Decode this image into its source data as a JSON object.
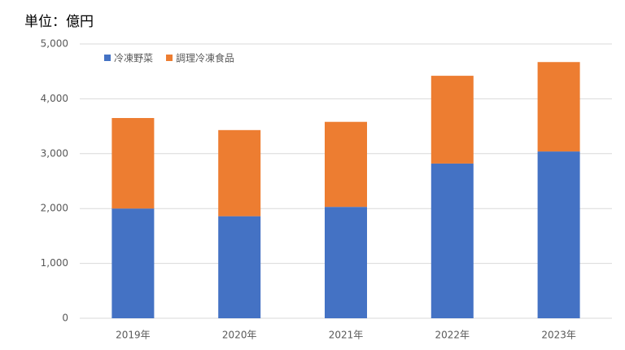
{
  "chart_data": {
    "type": "stacked_bar",
    "title": "単位：億円",
    "categories": [
      "2019年",
      "2020年",
      "2021年",
      "2022年",
      "2023年"
    ],
    "series": [
      {
        "name": "冷凍野菜",
        "color": "#4472c4",
        "values": [
          2000,
          1860,
          2030,
          2820,
          3040
        ]
      },
      {
        "name": "調理冷凍食品",
        "color": "#ed7d31",
        "values": [
          1650,
          1570,
          1550,
          1600,
          1630
        ]
      }
    ],
    "ylim": [
      0,
      5000
    ],
    "yticks": [
      0,
      {
        "value": 1000,
        "label": "1,000"
      },
      {
        "value": 2000,
        "label": "2,000"
      },
      {
        "value": 3000,
        "label": "3,000"
      },
      {
        "value": 4000,
        "label": "4,000"
      },
      {
        "value": 5000,
        "label": "5,000"
      }
    ],
    "grid": true,
    "legend": "top-left"
  }
}
